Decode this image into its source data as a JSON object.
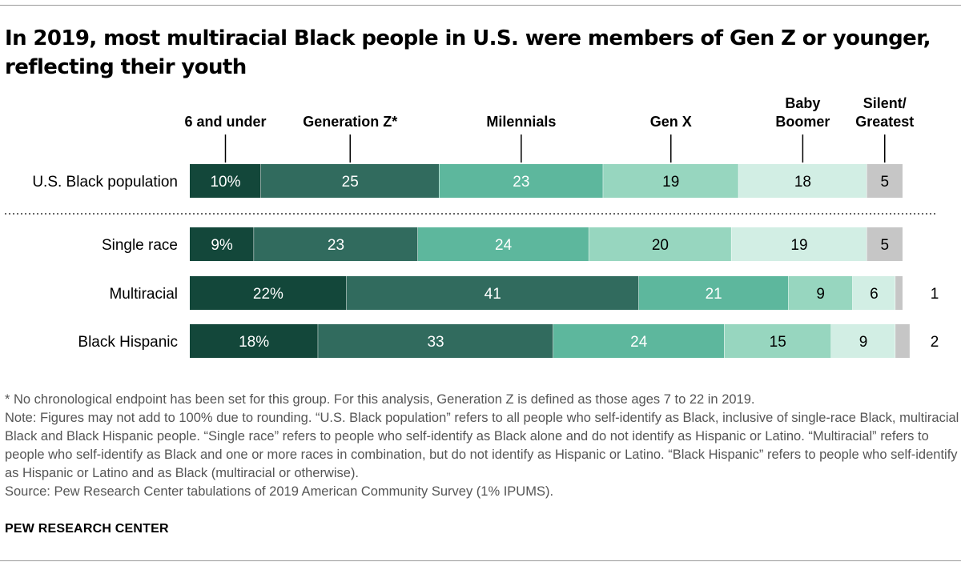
{
  "title": "In 2019, most multiracial Black people in U.S. were members of Gen Z or younger, reflecting their youth",
  "footnotes": [
    "* No chronological endpoint has been set for this group. For this analysis, Generation Z is defined as those ages 7 to 22 in 2019.",
    "Note: Figures may not add to 100% due to rounding. “U.S. Black population” refers to all people who self-identify as Black, inclusive of single-race Black, multiracial Black and Black Hispanic people. “Single race” refers to people who self-identify as Black alone and do not identify as Hispanic or Latino. “Multiracial” refers to people who self-identify as Black and one or more races in combination, but do not identify as Hispanic or Latino. “Black Hispanic” refers to people who self-identify as Hispanic or Latino and as Black (multiracial or otherwise).",
    "Source: Pew Research Center tabulations of 2019 American Community Survey (1% IPUMS)."
  ],
  "source_org": "PEW RESEARCH CENTER",
  "chart_data": {
    "type": "bar",
    "orientation": "horizontal-stacked",
    "unit": "%",
    "categories": [
      "U.S. Black population",
      "Single race",
      "Multiracial",
      "Black Hispanic"
    ],
    "series": [
      {
        "name": "6 and under",
        "color": "#13473a",
        "values": [
          10,
          9,
          22,
          18
        ],
        "labels": [
          "10%",
          "9%",
          "22%",
          "18%"
        ]
      },
      {
        "name": "Generation Z*",
        "color": "#316b5e",
        "values": [
          25,
          23,
          41,
          33
        ],
        "labels": [
          "25",
          "23",
          "41",
          "33"
        ]
      },
      {
        "name": "Milennials",
        "color": "#5db79d",
        "values": [
          23,
          24,
          21,
          24
        ],
        "labels": [
          "23",
          "24",
          "21",
          "24"
        ]
      },
      {
        "name": "Gen X",
        "color": "#97d6bf",
        "values": [
          19,
          20,
          9,
          15
        ],
        "labels": [
          "19",
          "20",
          "9",
          "15"
        ]
      },
      {
        "name": "Baby Boomer",
        "color": "#d2eee4",
        "values": [
          18,
          19,
          6,
          9
        ],
        "labels": [
          "18",
          "19",
          "6",
          "9"
        ]
      },
      {
        "name": "Silent/ Greatest",
        "color": "#c6c6c6",
        "values": [
          5,
          5,
          1,
          2
        ],
        "labels": [
          "5",
          "5",
          "1",
          "2"
        ]
      }
    ],
    "legend": "top, labels above first bar",
    "separator_after_first_row": true
  }
}
